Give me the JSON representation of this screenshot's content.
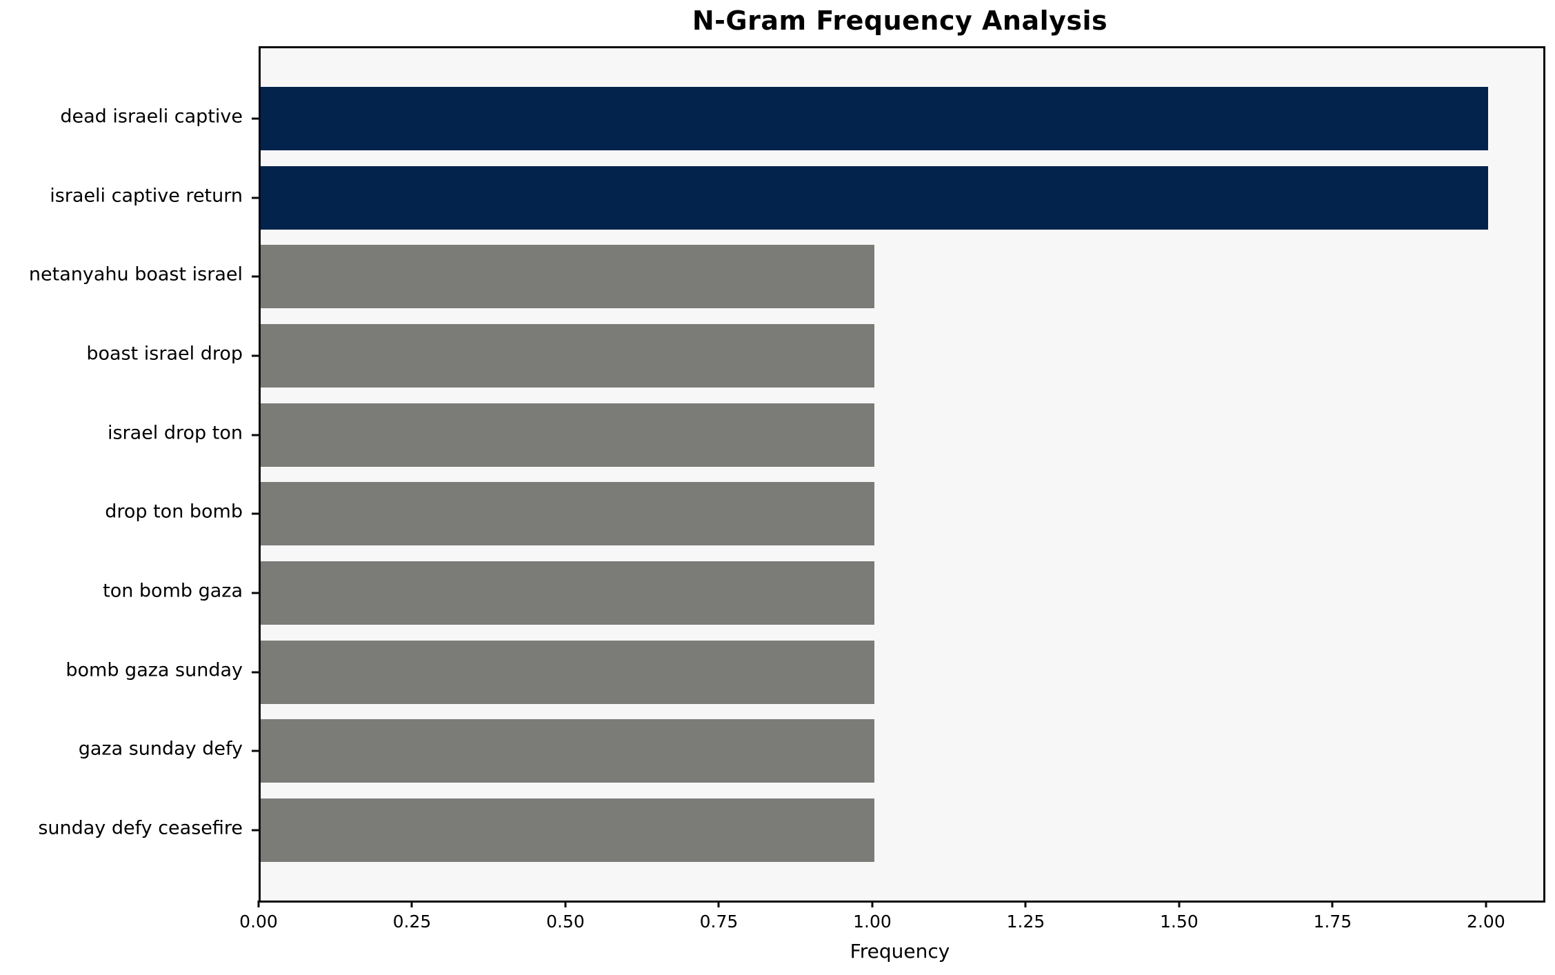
{
  "title": "N-Gram Frequency Analysis",
  "chart_data": {
    "type": "bar",
    "orientation": "horizontal",
    "title": "N-Gram Frequency Analysis",
    "xlabel": "Frequency",
    "ylabel": "",
    "categories": [
      "dead israeli captive",
      "israeli captive return",
      "netanyahu boast israel",
      "boast israel drop",
      "israel drop ton",
      "drop ton bomb",
      "ton bomb gaza",
      "bomb gaza sunday",
      "gaza sunday defy",
      "sunday defy ceasefire"
    ],
    "values": [
      2,
      2,
      1,
      1,
      1,
      1,
      1,
      1,
      1,
      1
    ],
    "bar_colors": [
      "#03234c",
      "#03234c",
      "#7b7b77",
      "#7b7b77",
      "#7b7b77",
      "#7b7b77",
      "#7b7b77",
      "#7b7b77",
      "#7b7b77",
      "#7b7b77"
    ],
    "xlim": [
      0,
      2.09
    ],
    "xticks": [
      0.0,
      0.25,
      0.5,
      0.75,
      1.0,
      1.25,
      1.5,
      1.75,
      2.0
    ],
    "xtick_labels": [
      "0.00",
      "0.25",
      "0.50",
      "0.75",
      "1.00",
      "1.25",
      "1.50",
      "1.75",
      "2.00"
    ],
    "grid": false,
    "legend": null,
    "colors": {
      "highlight_bar": "#03234c",
      "default_bar": "#7b7b77",
      "plot_background": "#f7f7f8",
      "figure_background": "#ffffff",
      "axis_frame": "#0a0a0a",
      "text": "#000000"
    }
  }
}
